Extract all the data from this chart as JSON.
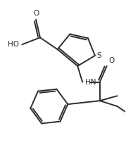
{
  "bg_color": "#ffffff",
  "line_color": "#2d2d2d",
  "line_width": 1.4,
  "figsize": [
    1.79,
    2.33
  ],
  "dpi": 100,
  "xlim": [
    0,
    9
  ],
  "ylim": [
    0,
    11.7
  ]
}
